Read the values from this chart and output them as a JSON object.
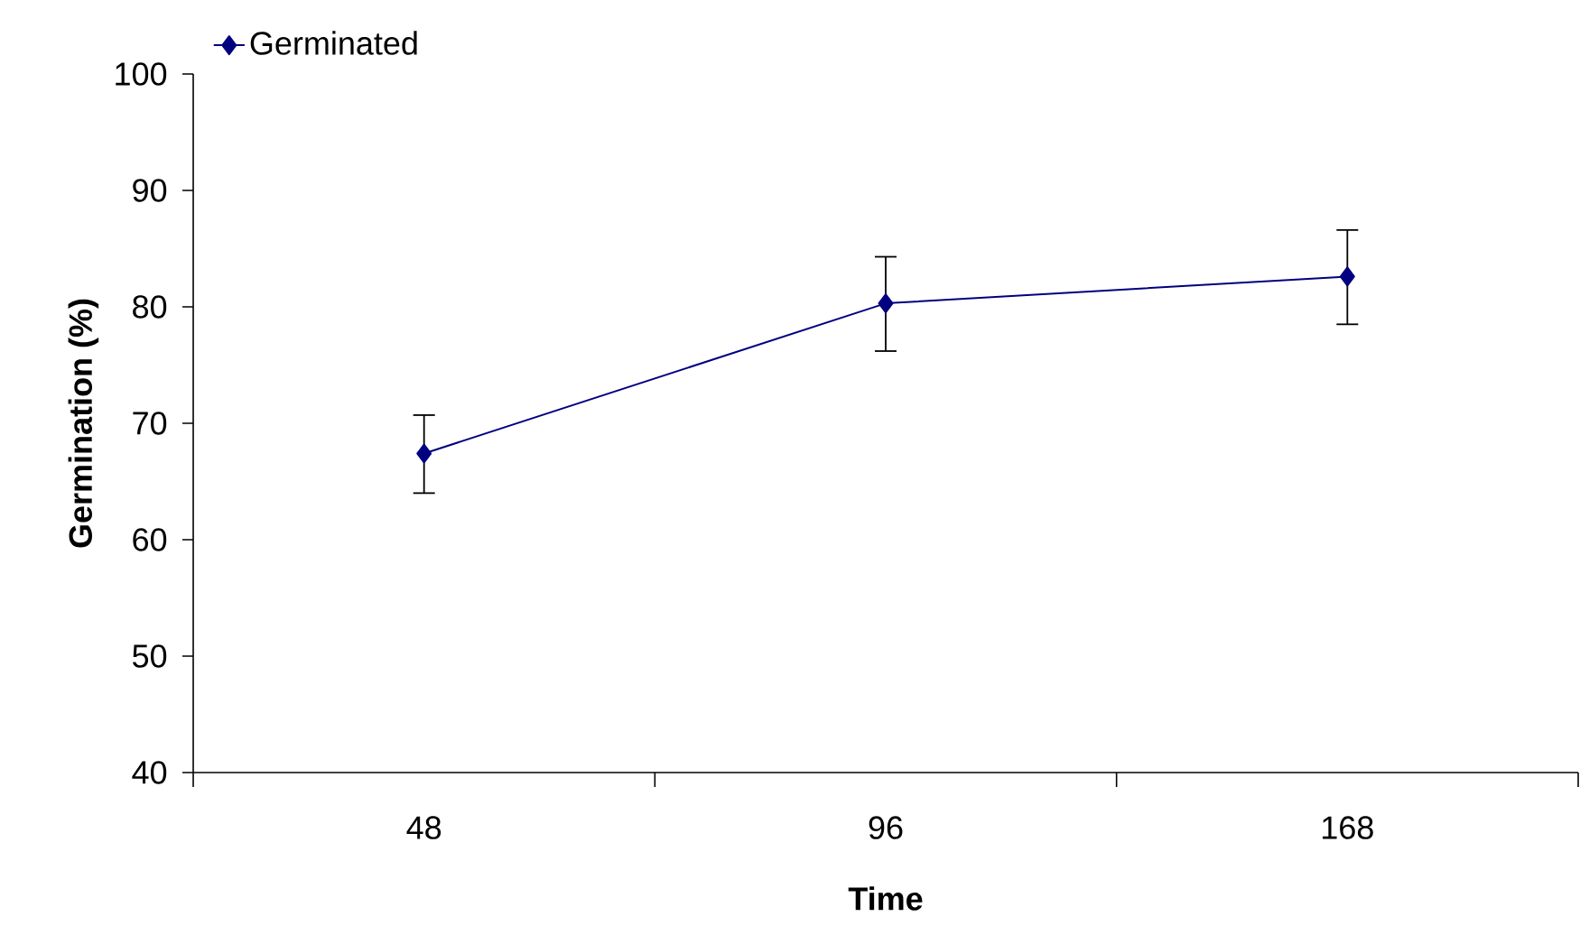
{
  "chart_data": {
    "type": "line",
    "xlabel": "Time",
    "ylabel": "Germination (%)",
    "categories": [
      "48",
      "96",
      "168"
    ],
    "series": [
      {
        "name": "Germinated",
        "color": "#000080",
        "values": [
          67.4,
          80.3,
          82.6
        ],
        "errors": [
          [
            64.0,
            70.7
          ],
          [
            76.2,
            84.3
          ],
          [
            78.5,
            86.6
          ]
        ]
      }
    ],
    "ylim": [
      40,
      100
    ],
    "yticks": [
      40,
      50,
      60,
      70,
      80,
      90,
      100
    ],
    "grid": false,
    "legend": "top left",
    "marker": "diamond",
    "line_style": "solid"
  }
}
